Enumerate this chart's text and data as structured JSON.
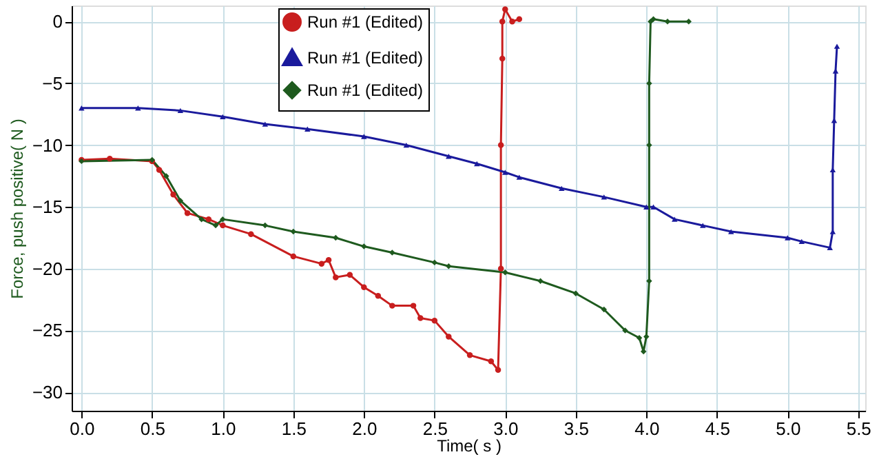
{
  "chart_data": {
    "type": "line",
    "xlabel": "Time( s )",
    "ylabel": "Force, push positive( N )",
    "xlim": [
      -0.07,
      5.55
    ],
    "ylim": [
      -31.5,
      1.3
    ],
    "xticks": [
      {
        "value": 0,
        "label": "0.0"
      },
      0.5,
      {
        "value": 1,
        "label": "1.0"
      },
      1.5,
      {
        "value": 2,
        "label": "2.0"
      },
      2.5,
      {
        "value": 3,
        "label": "3.0"
      },
      3.5,
      {
        "value": 4,
        "label": "4.0"
      },
      4.5,
      {
        "value": 5,
        "label": "5.0"
      },
      5.5
    ],
    "yticks": [
      0,
      -5,
      -10,
      -15,
      -20,
      -25,
      -30
    ],
    "grid": true,
    "legend": "top",
    "line_style": "solid",
    "series": [
      {
        "name": "Run #1 (Edited)",
        "color": "#c81e1e",
        "marker": "circle",
        "x": [
          0,
          0.2,
          0.5,
          0.55,
          0.65,
          0.75,
          0.9,
          1.0,
          1.2,
          1.5,
          1.7,
          1.75,
          1.8,
          1.9,
          2.0,
          2.1,
          2.2,
          2.35,
          2.4,
          2.5,
          2.6,
          2.75,
          2.9,
          2.95,
          2.97,
          2.97,
          2.98,
          2.98,
          3.0,
          3.05,
          3.1
        ],
        "values": [
          -11.2,
          -11.1,
          -11.3,
          -12,
          -14,
          -15.5,
          -16,
          -16.5,
          -17.2,
          -19,
          -19.6,
          -19.3,
          -20.7,
          -20.5,
          -21.5,
          -22.2,
          -23,
          -23,
          -24,
          -24.2,
          -25.5,
          -27,
          -27.5,
          -28.2,
          -20,
          -10,
          -3,
          0,
          1,
          0,
          0.2
        ]
      },
      {
        "name": "Run #1 (Edited)",
        "color": "#1a1a9c",
        "marker": "triangle",
        "x": [
          0,
          0.4,
          0.7,
          1.0,
          1.3,
          1.6,
          2.0,
          2.3,
          2.6,
          2.8,
          3.0,
          3.1,
          3.4,
          3.7,
          4.0,
          4.05,
          4.2,
          4.4,
          4.6,
          5.0,
          5.1,
          5.3,
          5.32,
          5.32,
          5.33,
          5.34,
          5.35
        ],
        "values": [
          -7,
          -7,
          -7.2,
          -7.7,
          -8.3,
          -8.7,
          -9.3,
          -10,
          -10.9,
          -11.5,
          -12.2,
          -12.6,
          -13.5,
          -14.2,
          -15,
          -15,
          -16,
          -16.5,
          -17,
          -17.5,
          -17.8,
          -18.3,
          -17,
          -12,
          -8,
          -4,
          -2
        ]
      },
      {
        "name": "Run #1 (Edited)",
        "color": "#1e5a1e",
        "marker": "diamond",
        "x": [
          0,
          0.5,
          0.6,
          0.7,
          0.85,
          0.95,
          1.0,
          1.3,
          1.5,
          1.8,
          2.0,
          2.2,
          2.5,
          2.6,
          3.0,
          3.25,
          3.5,
          3.7,
          3.85,
          3.95,
          3.98,
          4.0,
          4.02,
          4.02,
          4.02,
          4.03,
          4.05,
          4.15,
          4.3
        ],
        "values": [
          -11.3,
          -11.2,
          -12.5,
          -14.5,
          -16,
          -16.5,
          -16,
          -16.5,
          -17,
          -17.5,
          -18.2,
          -18.7,
          -19.5,
          -19.8,
          -20.3,
          -21,
          -22,
          -23.3,
          -25,
          -25.6,
          -26.7,
          -25.5,
          -21,
          -10,
          -5,
          0,
          0.2,
          0,
          0
        ]
      }
    ]
  }
}
